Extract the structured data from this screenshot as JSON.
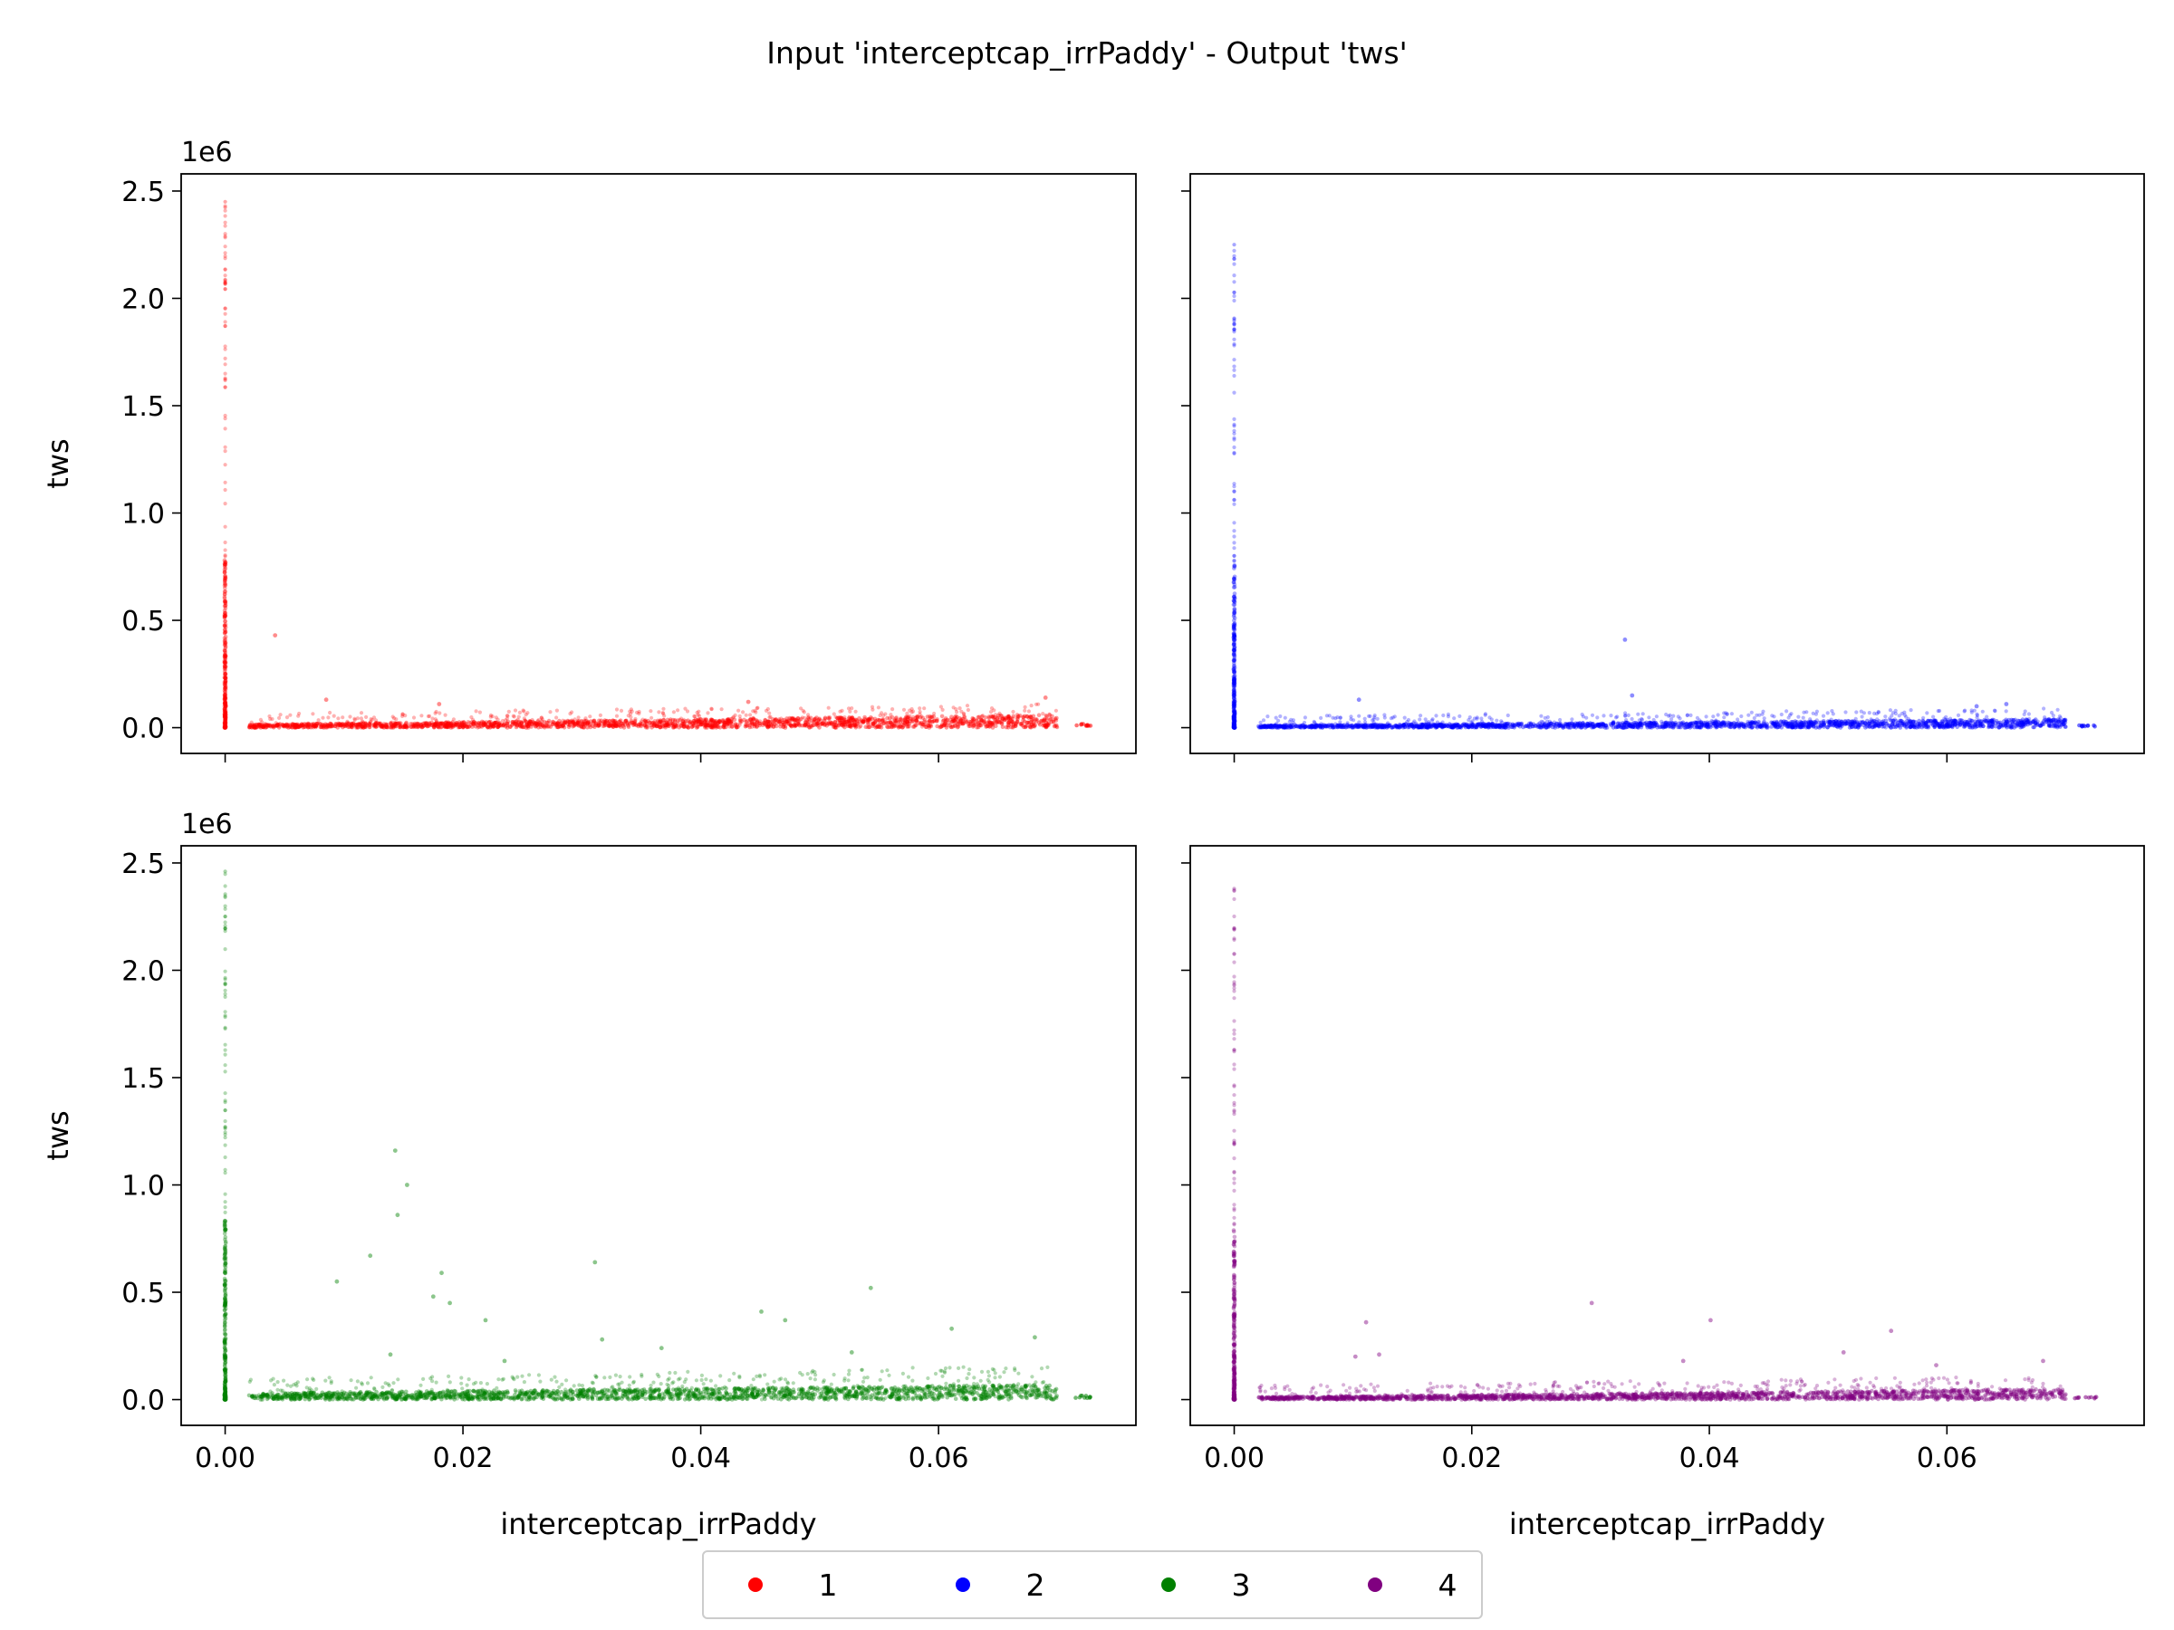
{
  "chart_data": {
    "type": "scatter",
    "title": "Input 'interceptcap_irrPaddy' - Output 'tws'",
    "xlabel": "interceptcap_irrPaddy",
    "ylabel": "tws",
    "y_offset_label": "1e6",
    "xlim": [
      -0.0037,
      0.0766
    ],
    "ylim": [
      -120000,
      2580000
    ],
    "x_ticks": [
      0.0,
      0.02,
      0.04,
      0.06
    ],
    "x_tick_labels": [
      "0.00",
      "0.02",
      "0.04",
      "0.06"
    ],
    "y_ticks": [
      0.0,
      500000,
      1000000,
      1500000,
      2000000,
      2500000
    ],
    "y_tick_labels": [
      "0.0",
      "0.5",
      "1.0",
      "1.5",
      "2.0",
      "2.5"
    ],
    "sharex": true,
    "sharey": true,
    "grid": false,
    "legend_placement": "bottom-center",
    "legend_entries": [
      "1",
      "2",
      "3",
      "4"
    ],
    "panels": [
      {
        "name": "1",
        "color": "#ff0000",
        "zero_column_max": 2450000,
        "zero_column_dense_max": 780000,
        "band": {
          "x_start": 0.002,
          "x_end": 0.07,
          "y_base_max_start": 15000,
          "y_base_max_end": 60000,
          "y_scatter_max": 110000
        },
        "tail": {
          "x_start": 0.0715,
          "x_end": 0.0728,
          "y": 18000
        },
        "outliers": [
          [
            0.0042,
            430000
          ],
          [
            0.0085,
            130000
          ],
          [
            0.018,
            110000
          ],
          [
            0.044,
            120000
          ],
          [
            0.069,
            140000
          ]
        ]
      },
      {
        "name": "2",
        "color": "#0000ff",
        "zero_column_max": 2250000,
        "zero_column_dense_max": 760000,
        "band": {
          "x_start": 0.002,
          "x_end": 0.07,
          "y_base_max_start": 10000,
          "y_base_max_end": 40000,
          "y_scatter_max": 90000
        },
        "tail": {
          "x_start": 0.071,
          "x_end": 0.0725,
          "y": 12000
        },
        "outliers": [
          [
            0.0329,
            410000
          ],
          [
            0.0335,
            150000
          ],
          [
            0.0105,
            130000
          ],
          [
            0.065,
            110000
          ],
          [
            0.0625,
            100000
          ]
        ]
      },
      {
        "name": "3",
        "color": "#008000",
        "zero_column_max": 2460000,
        "zero_column_dense_max": 850000,
        "band": {
          "x_start": 0.002,
          "x_end": 0.07,
          "y_base_max_start": 30000,
          "y_base_max_end": 70000,
          "y_scatter_max": 160000
        },
        "tail": {
          "x_start": 0.0715,
          "x_end": 0.0728,
          "y": 18000
        },
        "outliers": [
          [
            0.0143,
            1160000
          ],
          [
            0.0153,
            1000000
          ],
          [
            0.0145,
            860000
          ],
          [
            0.0175,
            480000
          ],
          [
            0.0182,
            590000
          ],
          [
            0.0189,
            450000
          ],
          [
            0.0122,
            670000
          ],
          [
            0.0094,
            550000
          ],
          [
            0.0219,
            370000
          ],
          [
            0.0311,
            640000
          ],
          [
            0.0317,
            280000
          ],
          [
            0.0451,
            410000
          ],
          [
            0.0471,
            370000
          ],
          [
            0.0543,
            520000
          ],
          [
            0.0611,
            330000
          ],
          [
            0.0681,
            290000
          ],
          [
            0.0139,
            210000
          ],
          [
            0.0235,
            180000
          ],
          [
            0.0367,
            240000
          ],
          [
            0.0527,
            220000
          ]
        ]
      },
      {
        "name": "4",
        "color": "#800080",
        "zero_column_max": 2380000,
        "zero_column_dense_max": 790000,
        "band": {
          "x_start": 0.002,
          "x_end": 0.07,
          "y_base_max_start": 12000,
          "y_base_max_end": 50000,
          "y_scatter_max": 110000
        },
        "tail": {
          "x_start": 0.0705,
          "x_end": 0.0727,
          "y": 12000
        },
        "outliers": [
          [
            0.0301,
            450000
          ],
          [
            0.0401,
            370000
          ],
          [
            0.0111,
            360000
          ],
          [
            0.0553,
            320000
          ],
          [
            0.0513,
            220000
          ],
          [
            0.0122,
            210000
          ],
          [
            0.0102,
            200000
          ],
          [
            0.0378,
            180000
          ],
          [
            0.0681,
            180000
          ],
          [
            0.0591,
            160000
          ]
        ]
      }
    ]
  }
}
